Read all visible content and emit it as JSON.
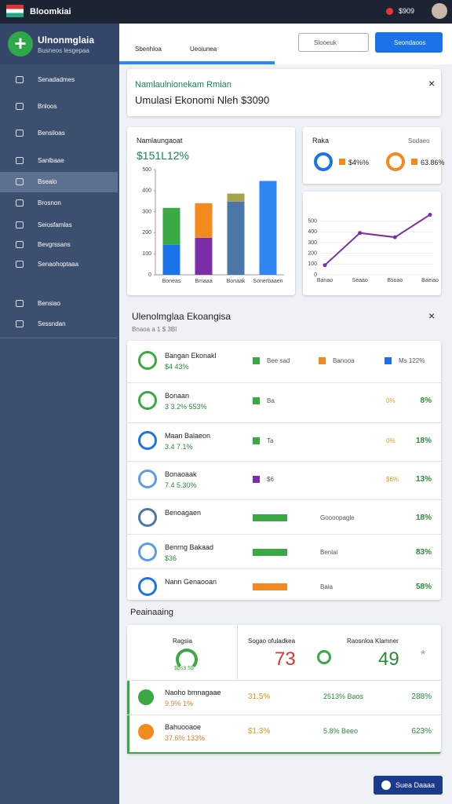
{
  "topbar": {
    "brand": "Bloomkiai",
    "user": "$909"
  },
  "sidebar": {
    "title": "Ulnonmglaia",
    "subtitle": "Busneos lesgepaa",
    "items": [
      "Senadadmes",
      "Bnloos",
      "Bensiloas",
      "Sanlbaae",
      "Bsealo",
      "Brosnon",
      "Seiosfamlas",
      "Bevgrssans",
      "Senaohoptaaa",
      "Bensiao",
      "Sessndan"
    ]
  },
  "tabs": [
    "Sbenhloa",
    "Ueoiunea"
  ],
  "search": "Slooeuk",
  "action_button": "Seondaoos",
  "alert": {
    "title": "Namlaulnionekam Rmian",
    "text": "Umulasi Ekonomi Nleh $3090"
  },
  "bar_chart": {
    "type": "bar",
    "title": "Namlaungaoat",
    "subtitle": "$151L12%",
    "categories": [
      "Boneas",
      "Bmaaa",
      "Bonaak",
      "Sonerbaaen"
    ],
    "series": [
      {
        "colors": [
          "#1a73e8",
          "#7b2ea8",
          "#4a77a8",
          "#2f86f0"
        ],
        "values": [
          142,
          176,
          348,
          446
        ]
      },
      {
        "colors": [
          "#3aa843",
          "#f28a1e",
          "#a8a24a",
          "#2f86f0"
        ],
        "values": [
          176,
          164,
          38,
          null
        ]
      }
    ],
    "ylim": [
      0,
      500
    ],
    "yticks": [
      0,
      100,
      200,
      300,
      400,
      500
    ]
  },
  "donut_card": {
    "title": "Raka",
    "link": "Sodaeo",
    "items": [
      {
        "label": "$4%%",
        "color": "#1a73e8",
        "swatch": "#f28a1e"
      },
      {
        "label": "63.86%",
        "color": "#f28a1e",
        "swatch": "#f28a1e"
      }
    ]
  },
  "line_chart": {
    "type": "line",
    "categories": [
      "Banao",
      "Seaao",
      "Bsoao",
      "Baeiao"
    ],
    "values": [
      90,
      390,
      350,
      560
    ],
    "color": "#7b2ea8",
    "ylim": [
      0,
      600
    ],
    "yticks": [
      0,
      100,
      200,
      300,
      400,
      500
    ]
  },
  "section": {
    "title": "Ulenolmglaa Ekoangisa",
    "subtitle": "Bnaoa a 1 $ 3BI"
  },
  "rows": [
    {
      "name": "Bangan Ekonakl",
      "sub": "$4 43%",
      "icon": "#3aa843",
      "tags": [
        {
          "text": "Bee sad",
          "color": "#3aa843"
        },
        {
          "text": "Banooa",
          "color": "#f28a1e"
        },
        {
          "text": "Ms 122%",
          "color": "#1a73e8"
        }
      ],
      "right": null
    },
    {
      "name": "Bonaan",
      "sub": "3 3.2% 553%",
      "icon": "#3aa843",
      "tags": [
        {
          "text": "Ba",
          "color": "#3aa843"
        },
        {
          "text": "0%",
          "color": null
        }
      ],
      "right": "8%"
    },
    {
      "name": "Maan Balaeon",
      "sub": "3.4 7.1%",
      "icon": "#1a73e8",
      "tags": [
        {
          "text": "Ta",
          "color": "#3aa843"
        },
        {
          "text": "0%",
          "color": null
        }
      ],
      "right": "18%"
    },
    {
      "name": "Bonaoaak",
      "sub": "7.4 5.30%",
      "icon": "#5b9be8",
      "tags": [
        {
          "text": "$6",
          "color": "#7b2ea8"
        },
        {
          "text": "$6%",
          "color": null
        }
      ],
      "right": "13%"
    },
    {
      "name": "Benoagaen",
      "sub": null,
      "icon": "#4a77a8",
      "tags": [
        {
          "text": "Goooopagle",
          "color": "#3aa843"
        }
      ],
      "right": "18%"
    },
    {
      "name": "Benrng Bakaad",
      "sub": "$36",
      "icon": "#5b9be8",
      "tags": [
        {
          "text": "Benlai",
          "color": "#3aa843"
        }
      ],
      "right": "83%"
    },
    {
      "name": "Nann Genaooan",
      "sub": null,
      "icon": "#1a73e8",
      "tags": [
        {
          "text": "Baia",
          "color": "#f28a1e"
        }
      ],
      "right": "58%"
    }
  ],
  "summary": {
    "title": "Peainaaing",
    "headers": [
      "Ragsia",
      "Sogao ofuladkea",
      "Raosnloa Klamner"
    ],
    "gauge_label": "$bs3 5$",
    "big": [
      "73",
      "49"
    ],
    "rows": [
      {
        "name": "Naoho bmnagaae",
        "sub": "9.9% 1%",
        "icon": "#3aa843",
        "c1": "31.5%",
        "c2": "2513% Baos",
        "c3": "288%"
      },
      {
        "name": "Bahuooaoe",
        "sub": "37.6% 133%",
        "icon": "#f28a1e",
        "c1": "$1.3%",
        "c2": "5.8% Beeo",
        "c3": "623%"
      }
    ]
  },
  "footer_button": "Suea Daaaa"
}
